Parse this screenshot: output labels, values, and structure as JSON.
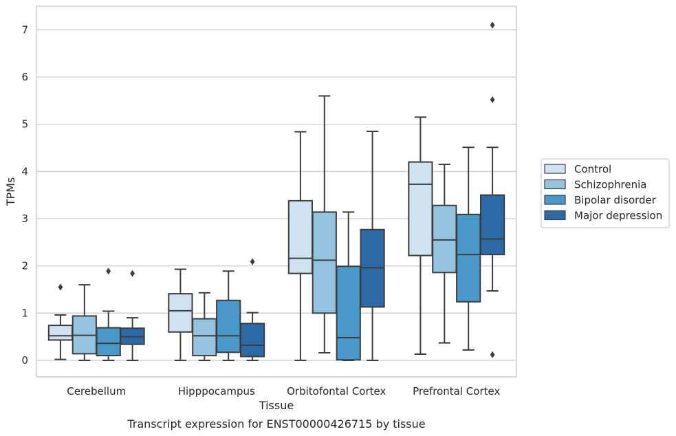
{
  "chart_data": {
    "type": "box",
    "xlabel": "Tissue",
    "ylabel": "TPMs",
    "caption": "Transcript expression for ENST00000426715 by tissue",
    "ylim": [
      -0.35,
      7.5
    ],
    "yticks": [
      0,
      1,
      2,
      3,
      4,
      5,
      6,
      7
    ],
    "grid": "horizontal",
    "legend_position": "right",
    "categories": [
      "Cerebellum",
      "Hipppocampus",
      "Orbitofontal Cortex",
      "Prefrontal Cortex"
    ],
    "series": [
      {
        "name": "Control",
        "color": "#d0e1f2",
        "boxes": [
          {
            "whisker_low": 0.02,
            "q1": 0.43,
            "median": 0.52,
            "q3": 0.74,
            "whisker_high": 0.96,
            "outliers": [
              1.55
            ]
          },
          {
            "whisker_low": 0.0,
            "q1": 0.6,
            "median": 1.05,
            "q3": 1.41,
            "whisker_high": 1.93,
            "outliers": []
          },
          {
            "whisker_low": 0.0,
            "q1": 1.84,
            "median": 2.16,
            "q3": 3.38,
            "whisker_high": 4.84,
            "outliers": []
          },
          {
            "whisker_low": 0.13,
            "q1": 2.22,
            "median": 3.73,
            "q3": 4.2,
            "whisker_high": 5.15,
            "outliers": []
          }
        ]
      },
      {
        "name": "Schizophrenia",
        "color": "#94c4df",
        "boxes": [
          {
            "whisker_low": 0.0,
            "q1": 0.14,
            "median": 0.53,
            "q3": 0.94,
            "whisker_high": 1.6,
            "outliers": []
          },
          {
            "whisker_low": 0.0,
            "q1": 0.1,
            "median": 0.52,
            "q3": 0.88,
            "whisker_high": 1.43,
            "outliers": []
          },
          {
            "whisker_low": 0.16,
            "q1": 1.0,
            "median": 2.12,
            "q3": 3.14,
            "whisker_high": 5.6,
            "outliers": []
          },
          {
            "whisker_low": 0.37,
            "q1": 1.86,
            "median": 2.55,
            "q3": 3.28,
            "whisker_high": 4.15,
            "outliers": []
          }
        ]
      },
      {
        "name": "Bipolar disorder",
        "color": "#4a98c9",
        "boxes": [
          {
            "whisker_low": 0.0,
            "q1": 0.1,
            "median": 0.36,
            "q3": 0.69,
            "whisker_high": 1.04,
            "outliers": [
              1.89
            ]
          },
          {
            "whisker_low": 0.0,
            "q1": 0.17,
            "median": 0.52,
            "q3": 1.27,
            "whisker_high": 1.89,
            "outliers": []
          },
          {
            "whisker_low": 0.0,
            "q1": 0.01,
            "median": 0.48,
            "q3": 1.99,
            "whisker_high": 3.14,
            "outliers": []
          },
          {
            "whisker_low": 0.22,
            "q1": 1.24,
            "median": 2.24,
            "q3": 3.09,
            "whisker_high": 4.51,
            "outliers": []
          }
        ]
      },
      {
        "name": "Major depression",
        "color": "#2b6aa6",
        "boxes": [
          {
            "whisker_low": 0.0,
            "q1": 0.34,
            "median": 0.5,
            "q3": 0.68,
            "whisker_high": 0.9,
            "outliers": [
              1.84
            ]
          },
          {
            "whisker_low": 0.0,
            "q1": 0.08,
            "median": 0.32,
            "q3": 0.78,
            "whisker_high": 1.01,
            "outliers": [
              2.09
            ]
          },
          {
            "whisker_low": 0.0,
            "q1": 1.13,
            "median": 1.96,
            "q3": 2.77,
            "whisker_high": 4.85,
            "outliers": []
          },
          {
            "whisker_low": 1.47,
            "q1": 2.24,
            "median": 2.57,
            "q3": 3.5,
            "whisker_high": 4.51,
            "outliers": [
              0.12,
              5.52,
              7.1
            ]
          }
        ]
      }
    ]
  }
}
